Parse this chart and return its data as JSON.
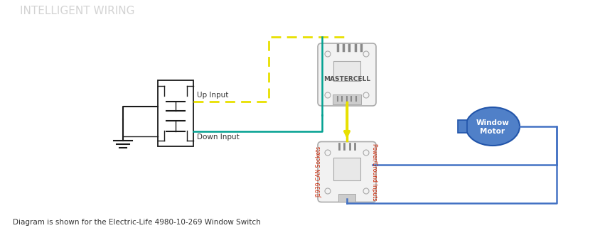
{
  "title": "INTELLIGENT WIRING",
  "title_color": "#cccccc",
  "title_fontsize": 11,
  "caption": "Diagram is shown for the Electric-Life 4980-10-269 Window Switch",
  "caption_fontsize": 7.5,
  "bg_color": "#ffffff",
  "mastercell_label": "MASTERCELL",
  "window_motor_label_line1": "Window",
  "window_motor_label_line2": "Motor",
  "j1939_label": "J1939 CAN Sockets",
  "power_label": "Power/Ground Inputs",
  "up_input_label": "Up Input",
  "down_input_label": "Down Input",
  "yellow_wire": "#e8e000",
  "teal_wire": "#00a090",
  "blue_wire": "#4472c4",
  "black_wire": "#1a1a1a",
  "device_outline": "#aaaaaa",
  "device_fill": "#f2f2f2",
  "motor_fill": "#5080c8",
  "motor_outline": "#2255aa",
  "label_red": "#cc2200"
}
